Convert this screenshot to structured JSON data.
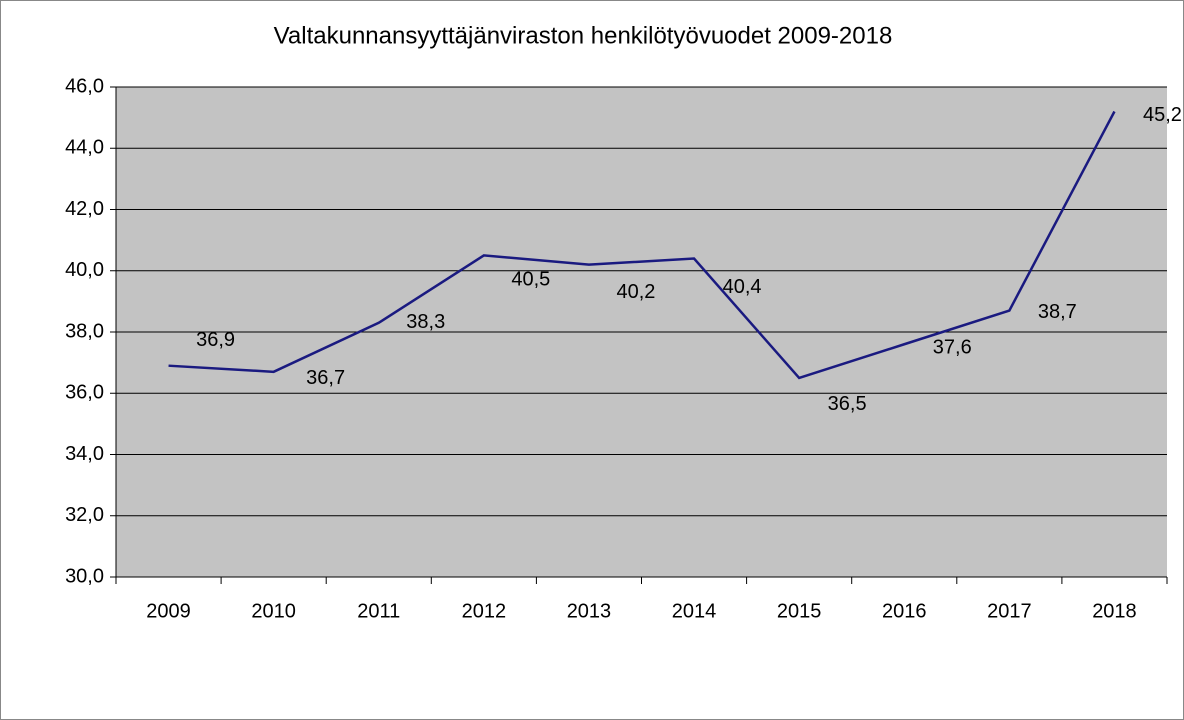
{
  "chart_data": {
    "type": "line",
    "title": "Valtakunnansyyttäjänviraston henkilötyövuodet 2009-2018",
    "categories": [
      "2009",
      "2010",
      "2011",
      "2012",
      "2013",
      "2014",
      "2015",
      "2016",
      "2017",
      "2018"
    ],
    "series": [
      {
        "name": "Henkilötyövuodet",
        "color": "#1a1a80",
        "values": [
          36.9,
          36.7,
          38.3,
          40.5,
          40.2,
          40.4,
          36.5,
          37.6,
          38.7,
          45.2
        ],
        "value_labels": [
          "36,9",
          "36,7",
          "38,3",
          "40,5",
          "40,2",
          "40,4",
          "36,5",
          "37,6",
          "38,7",
          "45,2"
        ]
      }
    ],
    "ylim": [
      30,
      46
    ],
    "yticks": [
      {
        "value": 30,
        "label": "30,0"
      },
      {
        "value": 32,
        "label": "32,0"
      },
      {
        "value": 34,
        "label": "34,0"
      },
      {
        "value": 36,
        "label": "36,0"
      },
      {
        "value": 38,
        "label": "38,0"
      },
      {
        "value": 40,
        "label": "40,0"
      },
      {
        "value": 42,
        "label": "42,0"
      },
      {
        "value": 44,
        "label": "44,0"
      },
      {
        "value": 46,
        "label": "46,0"
      }
    ],
    "grid": true
  }
}
